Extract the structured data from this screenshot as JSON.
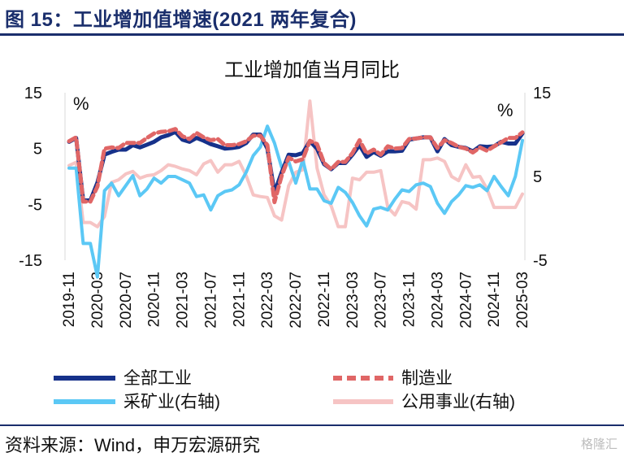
{
  "figure": {
    "title": "图 15：工业增加值增速(2021 两年复合)",
    "source": "资料来源：Wind，申万宏源研究",
    "watermark": "格隆汇"
  },
  "chart_data": {
    "type": "line",
    "title": "工业增加值当月同比",
    "left_axis": {
      "unit": "%",
      "ylim": [
        -15,
        15
      ],
      "ticks": [
        15,
        5,
        -5,
        -15
      ]
    },
    "right_axis": {
      "unit": "%",
      "ylim": [
        -5,
        15
      ],
      "ticks": [
        15,
        5,
        -5
      ]
    },
    "x_tick_labels": [
      "2019-11",
      "2020-03",
      "2020-07",
      "2020-11",
      "2021-03",
      "2021-07",
      "2021-11",
      "2022-03",
      "2022-07",
      "2022-11",
      "2023-03",
      "2023-07",
      "2023-11",
      "2024-03",
      "2024-07",
      "2024-11",
      "2025-03"
    ],
    "x": [
      "2019-11",
      "2019-12",
      "2020-01",
      "2020-02",
      "2020-03",
      "2020-04",
      "2020-05",
      "2020-06",
      "2020-07",
      "2020-08",
      "2020-09",
      "2020-10",
      "2020-11",
      "2020-12",
      "2021-01",
      "2021-02",
      "2021-03",
      "2021-04",
      "2021-05",
      "2021-06",
      "2021-07",
      "2021-08",
      "2021-09",
      "2021-10",
      "2021-11",
      "2021-12",
      "2022-01",
      "2022-02",
      "2022-03",
      "2022-04",
      "2022-05",
      "2022-06",
      "2022-07",
      "2022-08",
      "2022-09",
      "2022-10",
      "2022-11",
      "2022-12",
      "2023-01",
      "2023-02",
      "2023-03",
      "2023-04",
      "2023-05",
      "2023-06",
      "2023-07",
      "2023-08",
      "2023-09",
      "2023-10",
      "2023-11",
      "2023-12",
      "2024-01",
      "2024-02",
      "2024-03",
      "2024-04",
      "2024-05",
      "2024-06",
      "2024-07",
      "2024-08",
      "2024-09",
      "2024-10",
      "2024-11",
      "2024-12",
      "2025-01",
      "2025-02",
      "2025-03"
    ],
    "series": [
      {
        "name": "全部工业",
        "axis": "left",
        "color": "#16318a",
        "style": "solid",
        "values": [
          6.2,
          6.9,
          -4.3,
          -4.3,
          -1.1,
          3.9,
          4.4,
          4.8,
          4.8,
          5.6,
          5.2,
          5.7,
          6.2,
          7.0,
          7.4,
          8.0,
          6.6,
          6.2,
          6.9,
          6.4,
          5.8,
          5.4,
          5.0,
          5.1,
          5.3,
          6.0,
          7.5,
          7.5,
          5.0,
          -2.9,
          0.7,
          3.9,
          3.8,
          4.2,
          6.3,
          5.0,
          2.2,
          1.3,
          2.4,
          2.4,
          3.9,
          5.6,
          3.5,
          4.4,
          3.7,
          4.5,
          4.5,
          4.6,
          6.6,
          6.8,
          7.0,
          7.0,
          4.5,
          6.7,
          5.6,
          5.3,
          5.1,
          4.5,
          5.4,
          5.3,
          5.4,
          6.2,
          5.9,
          5.9,
          7.7
        ]
      },
      {
        "name": "制造业",
        "axis": "left",
        "color": "#e06666",
        "style": "dashed",
        "values": [
          6.3,
          7.0,
          -4.5,
          -4.5,
          -1.8,
          5.0,
          5.2,
          5.1,
          6.0,
          6.0,
          6.0,
          6.9,
          7.7,
          8.0,
          8.1,
          8.5,
          7.2,
          6.7,
          7.8,
          7.0,
          6.5,
          6.7,
          5.6,
          5.6,
          5.8,
          6.3,
          7.3,
          7.3,
          5.6,
          -4.6,
          0.1,
          3.4,
          2.7,
          3.1,
          6.4,
          5.8,
          2.4,
          1.3,
          2.6,
          2.6,
          4.2,
          6.5,
          4.1,
          4.8,
          3.9,
          5.4,
          5.0,
          5.1,
          6.7,
          6.8,
          7.0,
          7.0,
          5.1,
          6.5,
          6.0,
          5.3,
          5.0,
          4.3,
          5.2,
          4.6,
          5.4,
          6.1,
          6.9,
          6.9,
          7.9
        ]
      },
      {
        "name": "采矿业(右轴)",
        "axis": "right",
        "color": "#5bc8f5",
        "style": "solid",
        "values": [
          6.0,
          6.0,
          -3.0,
          -3.0,
          -7.0,
          3.3,
          4.2,
          2.7,
          3.9,
          5.1,
          2.7,
          3.5,
          4.8,
          4.2,
          5.0,
          5.0,
          4.6,
          4.2,
          2.6,
          2.8,
          1.0,
          2.7,
          3.2,
          3.4,
          4.0,
          5.5,
          7.5,
          8.5,
          11.0,
          9.0,
          6.1,
          6.8,
          4.2,
          7.0,
          3.5,
          3.5,
          2.1,
          1.8,
          3.7,
          3.1,
          1.9,
          0.3,
          -0.9,
          1.1,
          1.3,
          1.0,
          2.3,
          3.4,
          3.2,
          4.0,
          4.2,
          3.8,
          1.8,
          0.6,
          2.0,
          2.8,
          3.9,
          3.7,
          4.0,
          3.3,
          5.0,
          3.8,
          2.7,
          5.0,
          9.3
        ]
      },
      {
        "name": "公用事业(右轴)",
        "axis": "right",
        "color": "#f6c4c4",
        "style": "solid",
        "values": [
          6.3,
          6.7,
          -0.5,
          -0.5,
          -1.0,
          0.2,
          4.3,
          4.6,
          5.3,
          5.6,
          4.8,
          5.1,
          5.2,
          5.7,
          6.4,
          6.2,
          5.9,
          5.7,
          5.2,
          6.5,
          6.9,
          5.5,
          6.4,
          6.4,
          6.8,
          5.1,
          2.8,
          2.6,
          2.5,
          0.3,
          -0.2,
          3.9,
          5.5,
          5.8,
          14.0,
          6.0,
          2.8,
          1.5,
          -1.0,
          -1.0,
          4.8,
          4.6,
          5.5,
          5.5,
          5.7,
          1.3,
          0.4,
          2.0,
          1.8,
          1.1,
          7.0,
          7.0,
          7.2,
          6.8,
          5.0,
          4.5,
          6.4,
          4.9,
          5.0,
          3.5,
          1.3,
          1.3,
          1.3,
          1.3,
          2.9
        ]
      }
    ]
  }
}
